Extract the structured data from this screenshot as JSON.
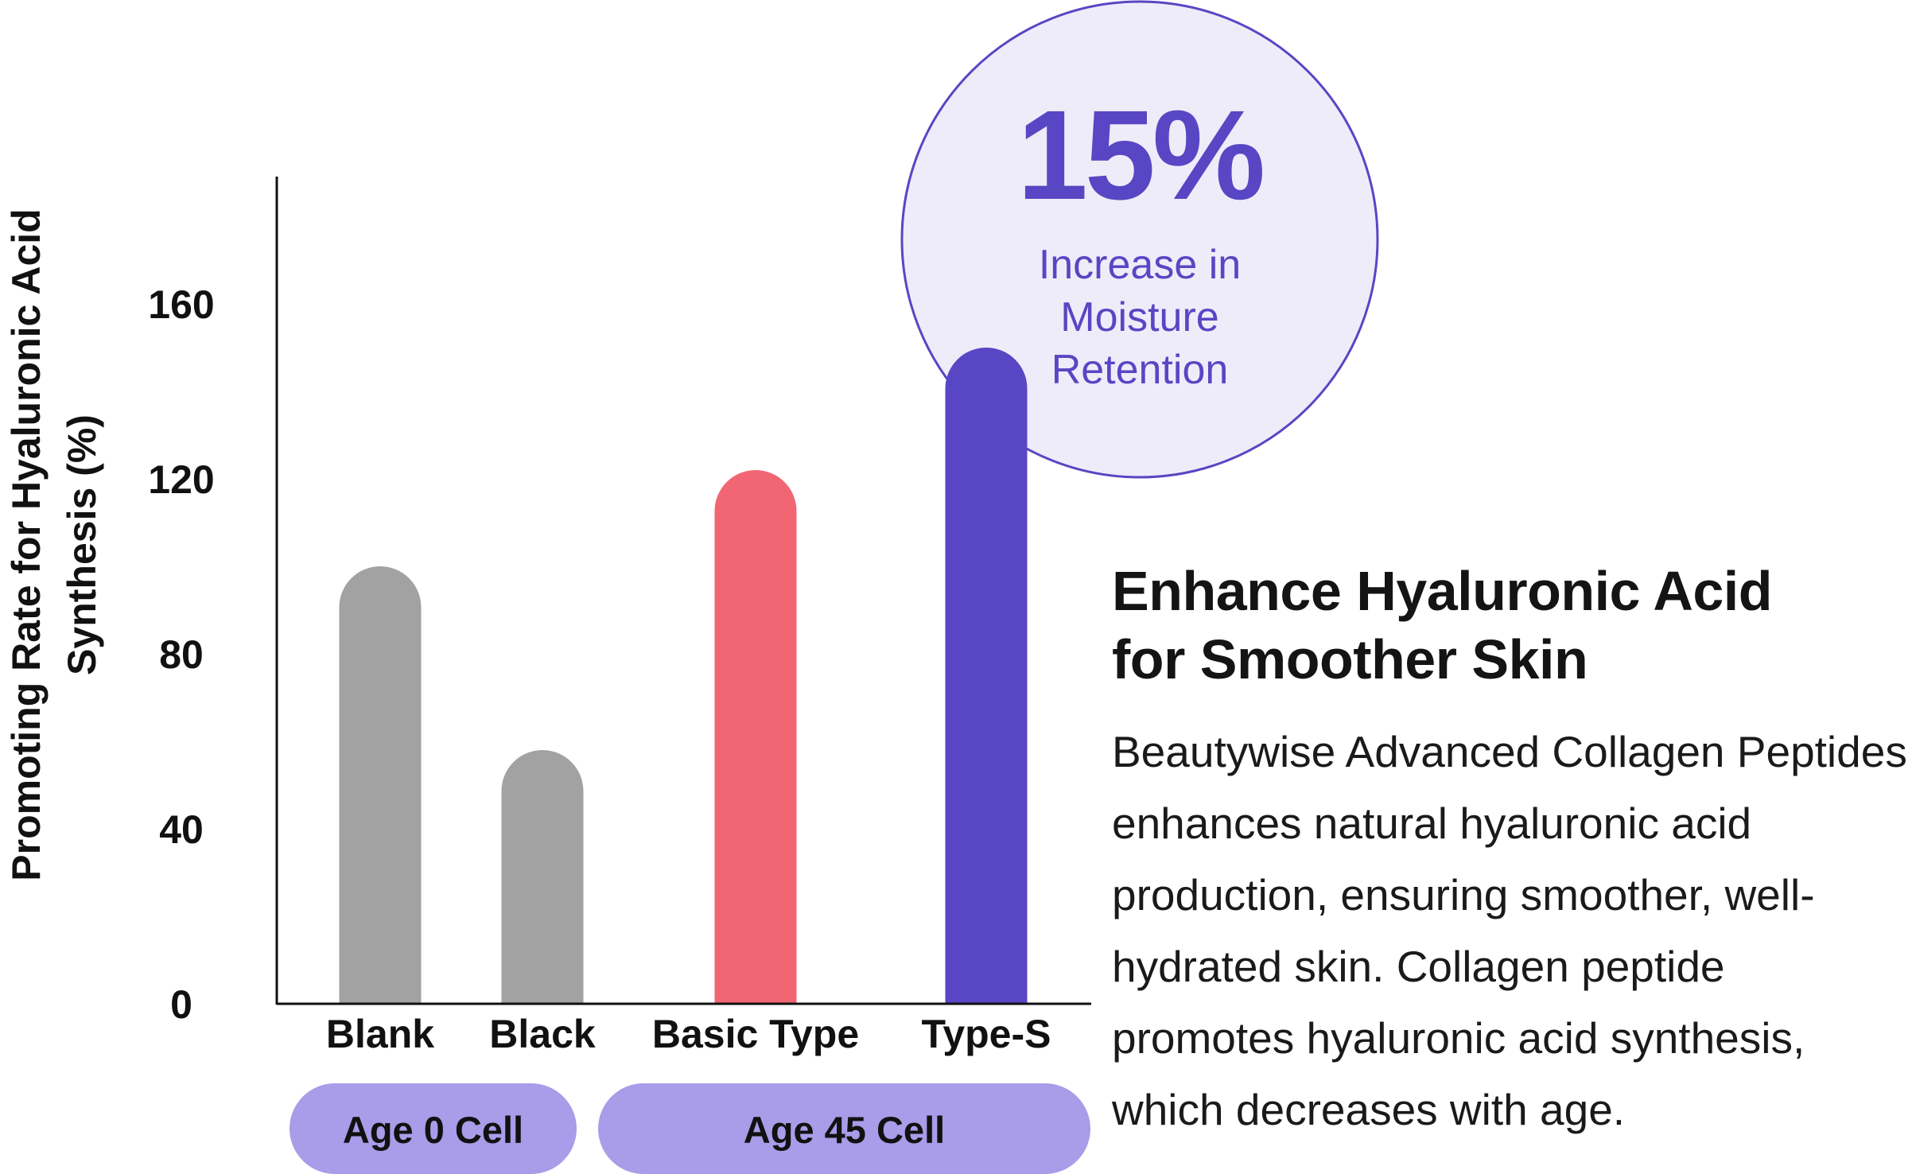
{
  "chart_data": {
    "type": "bar",
    "categories": [
      "Blank",
      "Black",
      "Basic Type",
      "Type-S"
    ],
    "values": [
      100,
      58,
      122,
      150
    ],
    "ylabel": [
      "Promoting Rate for Hyaluronic Acid",
      "Synthesis (%)"
    ],
    "yticks": [
      0,
      40,
      80,
      120,
      160
    ],
    "ylim": [
      0,
      190
    ],
    "grid": false,
    "groups": [
      {
        "label": "Age 0 Cell",
        "categories": [
          "Blank",
          "Black"
        ]
      },
      {
        "label": "Age 45 Cell",
        "categories": [
          "Basic Type",
          "Type-S"
        ]
      }
    ],
    "bar_colors": [
      "#a2a2a2",
      "#a2a2a2",
      "#f26674",
      "#5946c4"
    ],
    "callout": {
      "value": "15%",
      "lines": [
        "Increase in",
        "Moisture",
        "Retention"
      ],
      "fill": "#eeecf9",
      "stroke": "#5946c4",
      "text_color": "#5946c4"
    },
    "group_pill_color": "#a99ce8"
  },
  "side": {
    "heading_lines": [
      "Enhance Hyaluronic Acid",
      "for Smoother Skin"
    ],
    "body": "Beautywise Advanced Collagen Peptides enhances natural hyaluronic acid production, ensuring smoother, well-hydrated skin. Collagen peptide promotes hyaluronic acid synthesis, which decreases with age."
  }
}
